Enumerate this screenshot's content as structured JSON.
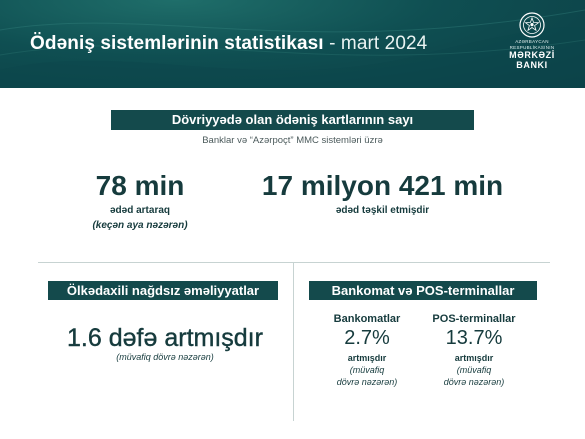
{
  "header": {
    "title_bold": "Ödəniş sistemlərinin statistikası",
    "title_rest": " - mart 2024",
    "logo_line1": "AZƏRBAYCAN",
    "logo_line2": "RESPUBLİKASININ",
    "logo_line3": "MƏRKƏZİ",
    "logo_line4": "BANKI"
  },
  "cards": {
    "banner": "Dövriyyədə olan ödəniş kartlarının sayı",
    "subtitle": "Banklar və “Azərpoçt” MMC sistemləri üzrə",
    "growth": {
      "value": "78 min",
      "label": "ədəd artaraq",
      "note": "(keçən aya nəzərən)"
    },
    "total": {
      "value": "17 milyon 421 min",
      "label": "ədəd təşkil etmişdir"
    }
  },
  "cashless": {
    "banner": "Ölkədaxili nağdsız əməliyyatlar",
    "value": "1.6 dəfə artmışdır",
    "note": "(müvafiq dövrə nəzərən)"
  },
  "atm_pos": {
    "banner": "Bankomat və POS-terminallar",
    "atm": {
      "title": "Bankomatlar",
      "value": "2.7%",
      "label": "artmışdır",
      "note1": "(müvafiq",
      "note2": "dövrə nəzərən)"
    },
    "pos": {
      "title": "POS-terminallar",
      "value": "13.7%",
      "label": "artmışdır",
      "note1": "(müvafiq",
      "note2": "dövrə nəzərən)"
    }
  },
  "colors": {
    "header_dark": "#0b3d44",
    "header_mid": "#1f6e6a",
    "banner": "#144a4c",
    "text": "#163b3d"
  }
}
